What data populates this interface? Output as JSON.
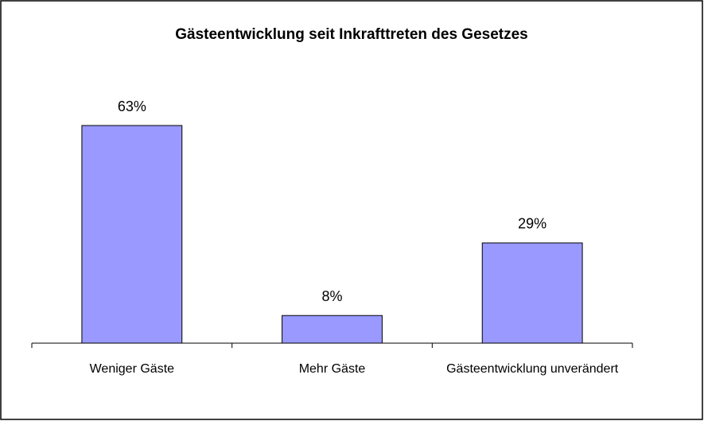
{
  "chart_data": {
    "type": "bar",
    "title": "Gästeentwicklung seit Inkrafttreten des Gesetzes",
    "categories": [
      "Weniger Gäste",
      "Mehr Gäste",
      "Gästeentwicklung unverändert"
    ],
    "values": [
      63,
      8,
      29
    ],
    "value_labels": [
      "63%",
      "8%",
      "29%"
    ],
    "color": "#9999ff"
  }
}
